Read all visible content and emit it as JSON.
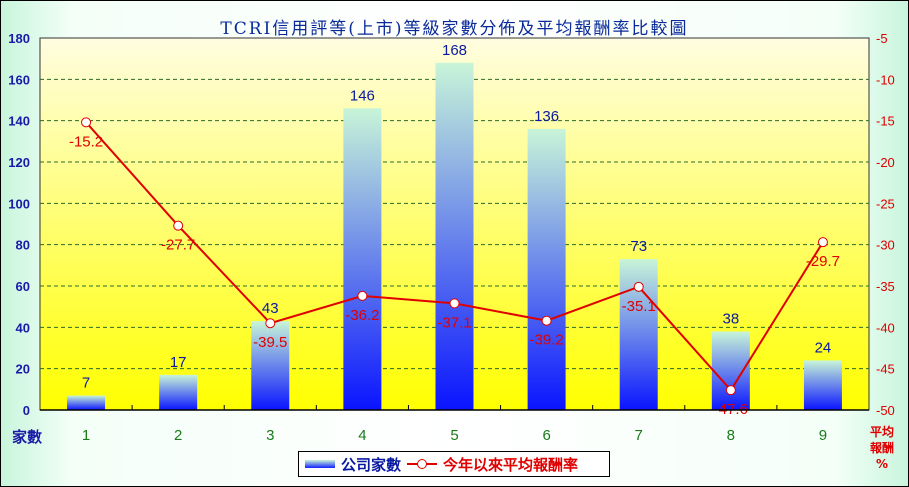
{
  "chart_data": {
    "type": "bar+line",
    "title": "TCRI信用評等(上市)等級家數分佈及平均報酬率比較圖",
    "categories": [
      "1",
      "2",
      "3",
      "4",
      "5",
      "6",
      "7",
      "8",
      "9"
    ],
    "series": [
      {
        "name": "公司家數",
        "type": "bar",
        "axis": "left",
        "values": [
          7,
          17,
          43,
          146,
          168,
          136,
          73,
          38,
          24
        ]
      },
      {
        "name": "今年以來平均報酬率",
        "type": "line",
        "axis": "right",
        "values": [
          -15.2,
          -27.7,
          -39.5,
          -36.2,
          -37.1,
          -39.2,
          -35.1,
          -47.6,
          -29.7
        ]
      }
    ],
    "xlabel": "",
    "ylabel": "家數",
    "ylabel_right": "平均報酬%",
    "ylim": [
      0,
      180
    ],
    "yticks": [
      0,
      20,
      40,
      60,
      80,
      100,
      120,
      140,
      160,
      180
    ],
    "ylim_right": [
      -50,
      -5
    ],
    "yticks_right": [
      -5,
      -10,
      -15,
      -20,
      -25,
      -30,
      -35,
      -40,
      -45,
      -50
    ],
    "grid": true,
    "legend_position": "bottom"
  },
  "labels": {
    "title": "TCRI信用評等(上市)等級家數分佈及平均報酬率比較圖",
    "left_unit": "家數",
    "right_unit_line1": "平均",
    "right_unit_line2": "報酬",
    "right_unit_line3": "%",
    "legend_bar": "公司家數",
    "legend_line": "今年以來平均報酬率"
  },
  "colors": {
    "bar_top": "#c8f5d8",
    "bar_bottom": "#0a14ff",
    "line": "#e00000",
    "plot_top": "#fffde0",
    "plot_bottom": "#ffff00",
    "left_axis_text": "#1a1aa8",
    "right_axis_text": "#e00000",
    "category_text": "#1a7a1a",
    "grid": "#2a6a2a"
  }
}
